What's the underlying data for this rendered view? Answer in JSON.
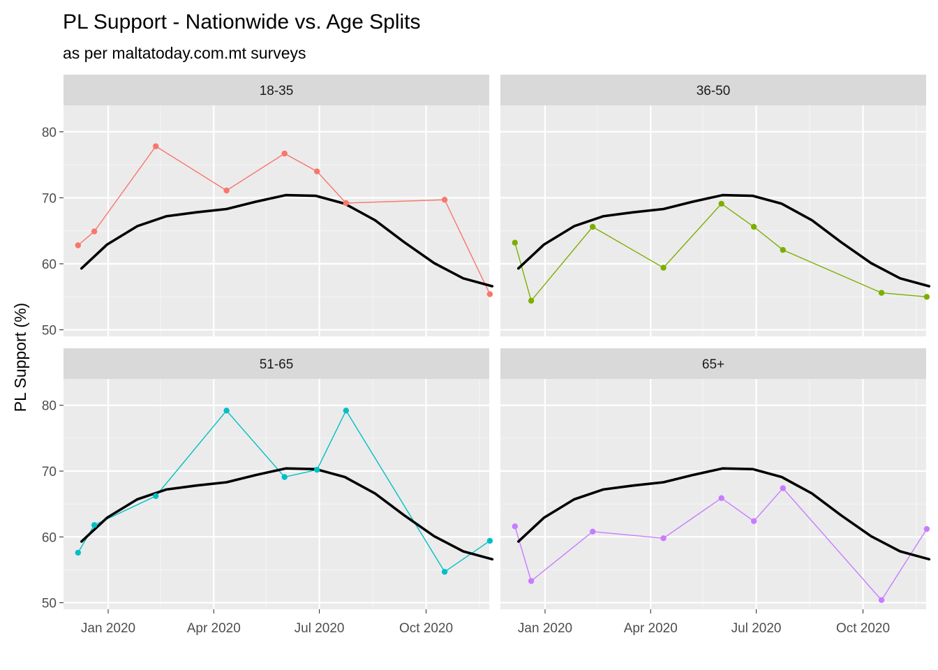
{
  "chart_data": {
    "type": "line",
    "title": "PL Support - Nationwide vs. Age Splits",
    "subtitle": "as per maltatoday.com.mt surveys",
    "xlabel": "",
    "ylabel": "PL Support (%)",
    "ylim": [
      49,
      84
    ],
    "x_ticks": [
      "Jan 2020",
      "Apr 2020",
      "Jul 2020",
      "Oct 2020"
    ],
    "y_ticks": [
      50,
      60,
      70,
      80
    ],
    "grid": true,
    "legend": "none",
    "nationwide_trend": {
      "color": "#000000",
      "x": [
        "2019-12-09",
        "2019-12-31",
        "2020-01-26",
        "2020-02-20",
        "2020-03-17",
        "2020-04-12",
        "2020-05-07",
        "2020-06-02",
        "2020-06-28",
        "2020-07-23",
        "2020-08-18",
        "2020-09-12",
        "2020-10-08",
        "2020-11-02",
        "2020-11-27"
      ],
      "y": [
        59.3,
        62.9,
        65.7,
        67.2,
        67.8,
        68.3,
        69.4,
        70.4,
        70.3,
        69.1,
        66.6,
        63.3,
        60.1,
        57.8,
        56.6
      ]
    },
    "series": [
      {
        "name": "18-35",
        "color": "#F8766D",
        "x": [
          "2019-12-06",
          "2019-12-20",
          "2020-02-11",
          "2020-04-12",
          "2020-06-01",
          "2020-06-29",
          "2020-07-24",
          "2020-10-17",
          "2020-11-25"
        ],
        "y": [
          62.8,
          64.9,
          77.8,
          71.1,
          76.7,
          74.0,
          69.2,
          69.7,
          55.4
        ]
      },
      {
        "name": "36-50",
        "color": "#7CAE00",
        "x": [
          "2019-12-06",
          "2019-12-20",
          "2020-02-11",
          "2020-04-12",
          "2020-06-01",
          "2020-06-29",
          "2020-07-24",
          "2020-10-17",
          "2020-11-25"
        ],
        "y": [
          63.2,
          54.4,
          65.6,
          59.4,
          69.1,
          65.6,
          62.1,
          55.6,
          55.0
        ]
      },
      {
        "name": "51-65",
        "color": "#00BFC4",
        "x": [
          "2019-12-06",
          "2019-12-20",
          "2020-02-11",
          "2020-04-12",
          "2020-06-01",
          "2020-06-29",
          "2020-07-24",
          "2020-10-17",
          "2020-11-25"
        ],
        "y": [
          57.6,
          61.8,
          66.2,
          79.2,
          69.1,
          70.2,
          79.2,
          54.7,
          59.4
        ]
      },
      {
        "name": "65+",
        "color": "#C77CFF",
        "x": [
          "2019-12-06",
          "2019-12-20",
          "2020-02-11",
          "2020-04-12",
          "2020-06-01",
          "2020-06-29",
          "2020-07-24",
          "2020-10-17",
          "2020-11-25"
        ],
        "y": [
          61.6,
          53.3,
          60.8,
          59.8,
          65.9,
          62.4,
          67.4,
          50.4,
          61.2
        ]
      }
    ]
  }
}
